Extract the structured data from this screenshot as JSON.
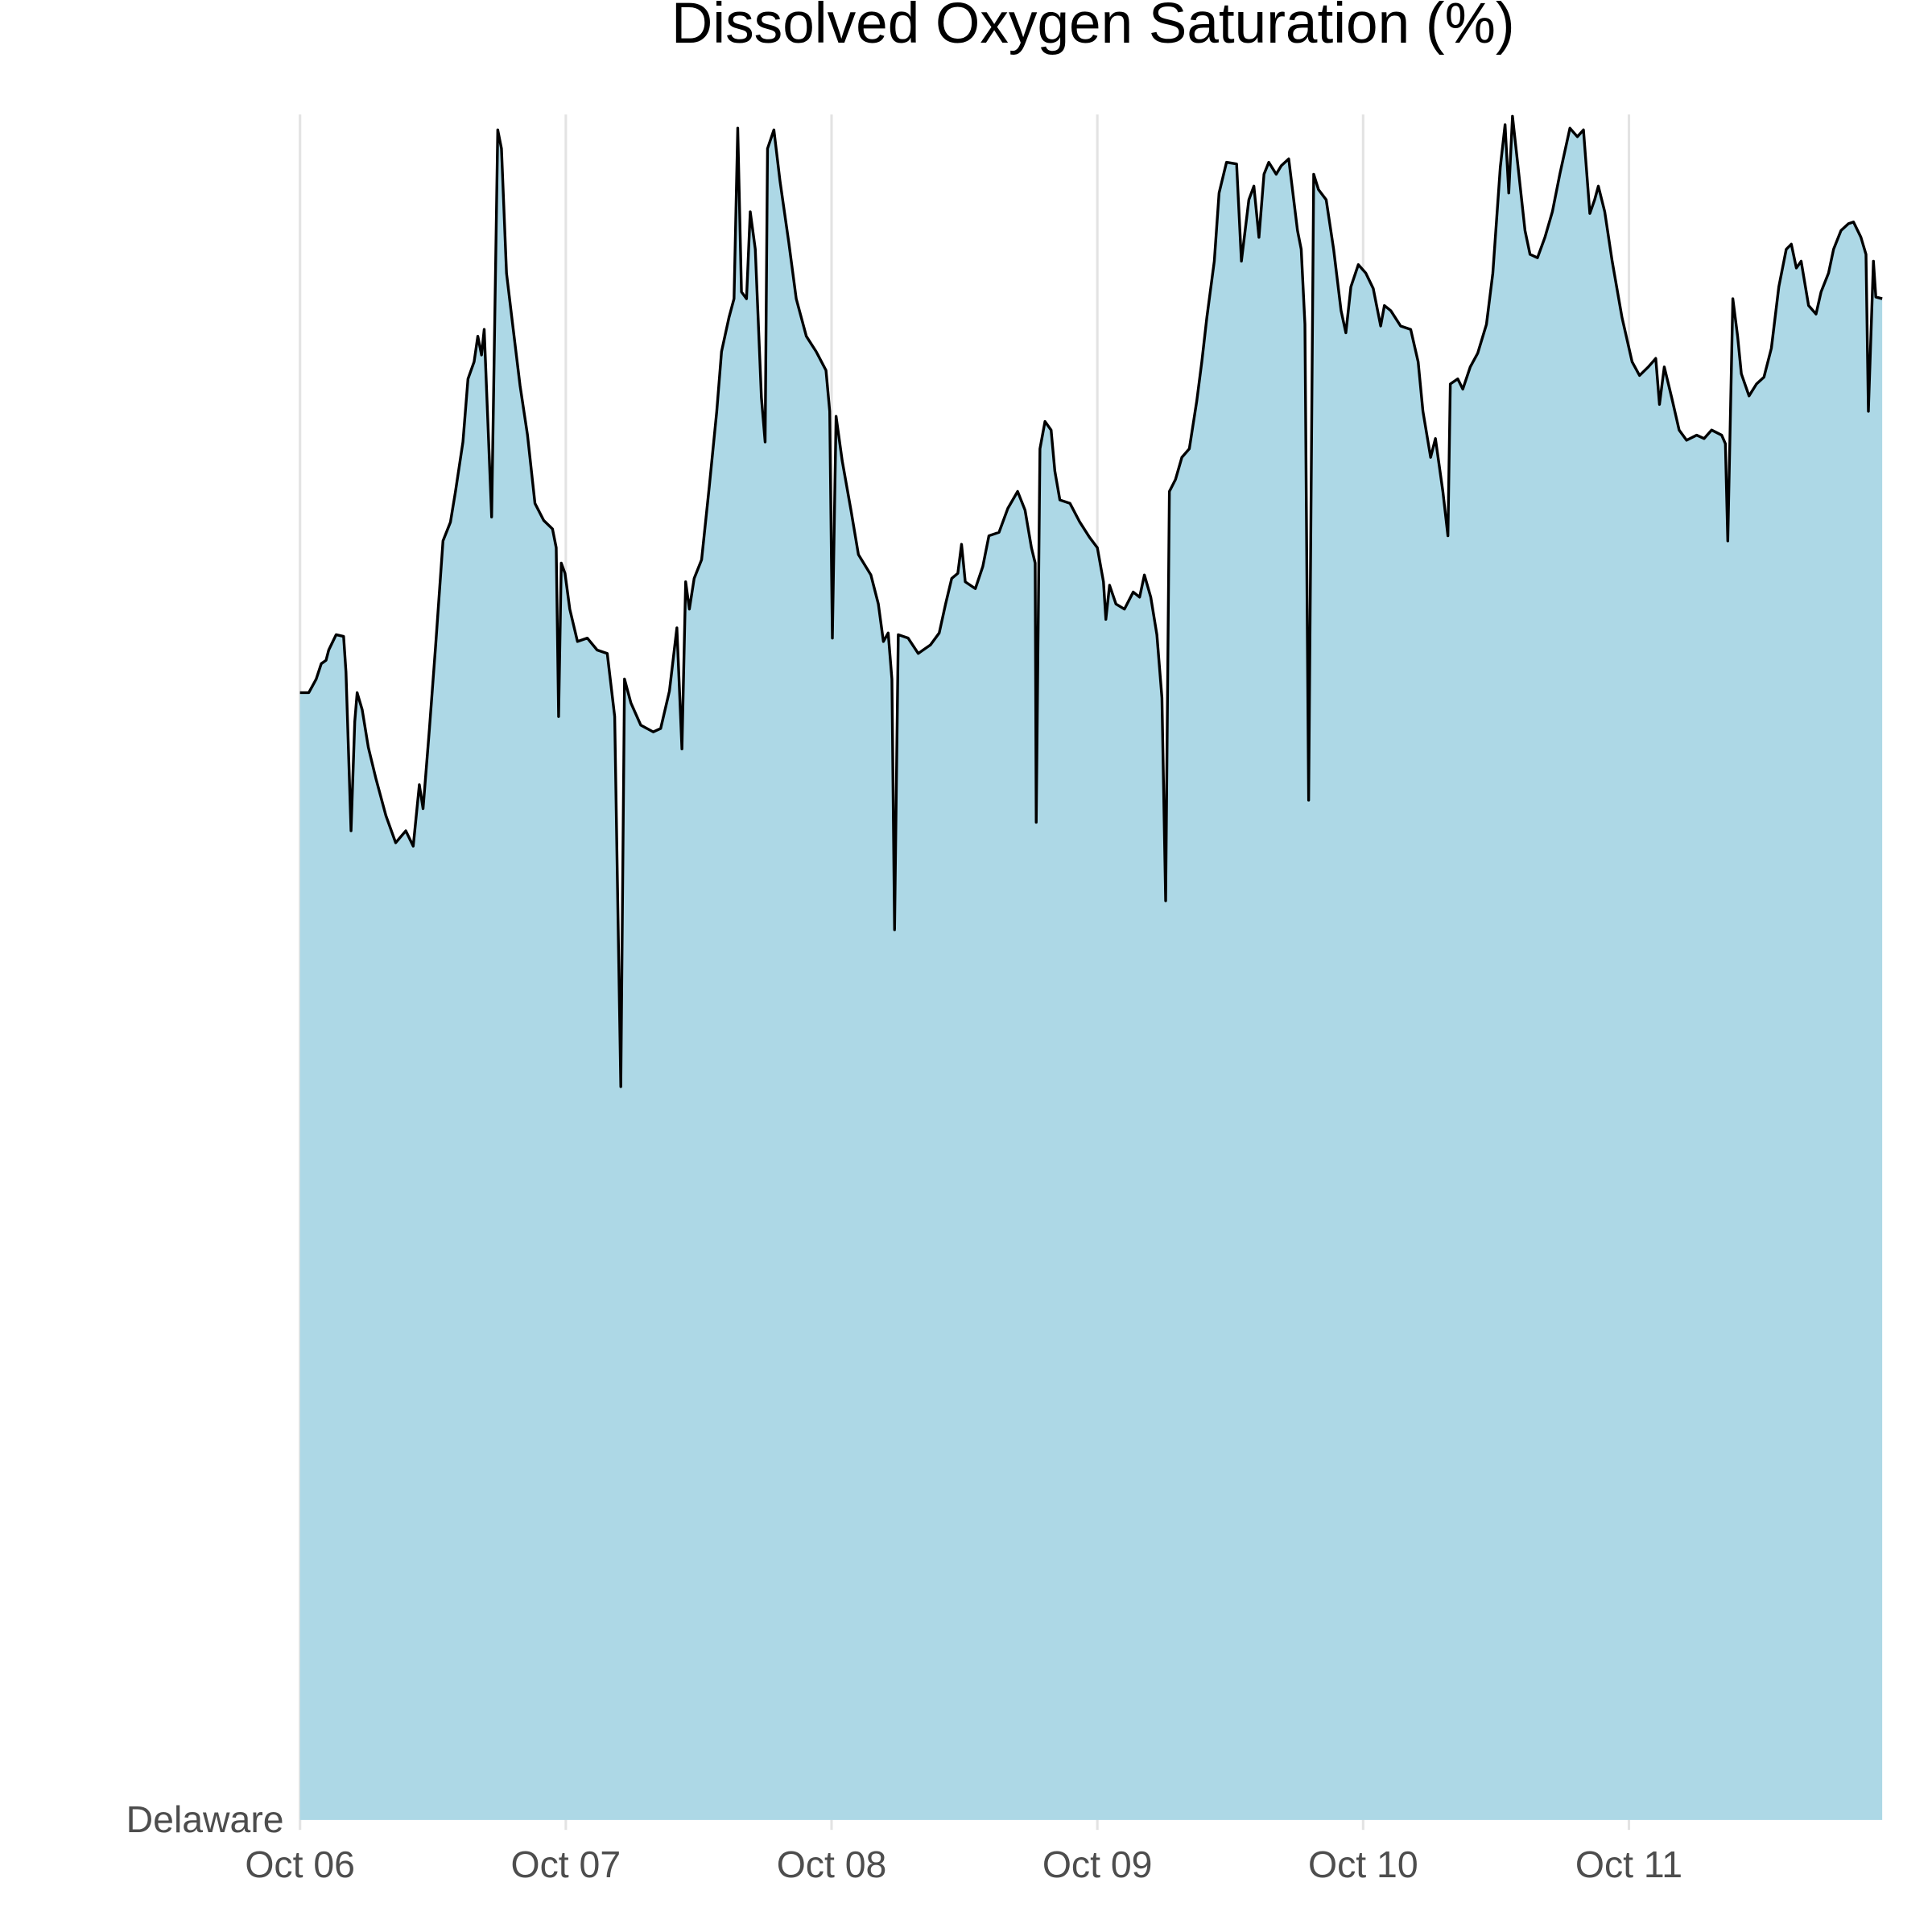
{
  "chart_data": {
    "type": "area",
    "title": "Dissolved Oxygen Saturation (%)",
    "xlim": [
      0,
      5.953
    ],
    "xticks": [
      {
        "value": 0,
        "label": "Oct 06"
      },
      {
        "value": 1,
        "label": "Oct 07"
      },
      {
        "value": 2,
        "label": "Oct 08"
      },
      {
        "value": 3,
        "label": "Oct 09"
      },
      {
        "value": 4,
        "label": "Oct 10"
      },
      {
        "value": 5,
        "label": "Oct 11"
      }
    ],
    "ylim": [
      0,
      100
    ],
    "grid": true,
    "line_color": "#000000",
    "x": [
      0,
      0.033,
      0.061,
      0.08,
      0.098,
      0.108,
      0.136,
      0.164,
      0.173,
      0.192,
      0.206,
      0.215,
      0.234,
      0.257,
      0.285,
      0.323,
      0.36,
      0.398,
      0.426,
      0.449,
      0.463,
      0.487,
      0.51,
      0.538,
      0.566,
      0.585,
      0.613,
      0.632,
      0.655,
      0.669,
      0.683,
      0.693,
      0.721,
      0.744,
      0.758,
      0.777,
      0.8,
      0.828,
      0.856,
      0.884,
      0.917,
      0.95,
      0.964,
      0.973,
      0.983,
      0.997,
      1.015,
      1.044,
      1.081,
      1.118,
      1.156,
      1.184,
      1.207,
      1.221,
      1.245,
      1.282,
      1.329,
      1.357,
      1.39,
      1.418,
      1.437,
      1.451,
      1.465,
      1.483,
      1.511,
      1.54,
      1.568,
      1.586,
      1.614,
      1.633,
      1.647,
      1.661,
      1.68,
      1.694,
      1.713,
      1.736,
      1.75,
      1.759,
      1.783,
      1.806,
      1.839,
      1.867,
      1.905,
      1.942,
      1.979,
      1.993,
      2.003,
      2.017,
      2.04,
      2.073,
      2.101,
      2.148,
      2.176,
      2.195,
      2.213,
      2.227,
      2.237,
      2.251,
      2.288,
      2.326,
      2.372,
      2.405,
      2.429,
      2.452,
      2.475,
      2.489,
      2.503,
      2.541,
      2.569,
      2.592,
      2.63,
      2.663,
      2.7,
      2.728,
      2.752,
      2.766,
      2.77,
      2.784,
      2.803,
      2.826,
      2.84,
      2.859,
      2.897,
      2.934,
      2.971,
      3.0,
      3.023,
      3.032,
      3.046,
      3.07,
      3.102,
      3.135,
      3.159,
      3.177,
      3.201,
      3.224,
      3.243,
      3.257,
      3.271,
      3.294,
      3.318,
      3.346,
      3.374,
      3.393,
      3.412,
      3.44,
      3.458,
      3.486,
      3.524,
      3.542,
      3.57,
      3.589,
      3.608,
      3.627,
      3.645,
      3.673,
      3.692,
      3.72,
      3.753,
      3.767,
      3.781,
      3.795,
      3.814,
      3.832,
      3.861,
      3.889,
      3.917,
      3.935,
      3.954,
      3.982,
      4.01,
      4.038,
      4.066,
      4.08,
      4.104,
      4.141,
      4.179,
      4.207,
      4.225,
      4.254,
      4.272,
      4.3,
      4.319,
      4.328,
      4.356,
      4.375,
      4.403,
      4.431,
      4.464,
      4.488,
      4.516,
      4.534,
      4.548,
      4.562,
      4.581,
      4.609,
      4.628,
      4.656,
      4.684,
      4.712,
      4.74,
      4.778,
      4.806,
      4.829,
      4.853,
      4.871,
      4.885,
      4.909,
      4.937,
      4.974,
      5.012,
      5.04,
      5.073,
      5.101,
      5.115,
      5.133,
      5.161,
      5.189,
      5.217,
      5.255,
      5.283,
      5.311,
      5.349,
      5.363,
      5.372,
      5.391,
      5.409,
      5.423,
      5.452,
      5.48,
      5.508,
      5.536,
      5.564,
      5.592,
      5.611,
      5.63,
      5.648,
      5.676,
      5.704,
      5.723,
      5.751,
      5.77,
      5.798,
      5.826,
      5.845,
      5.873,
      5.892,
      5.901,
      5.92,
      5.929,
      5.953
    ],
    "series": [
      {
        "name": "Delaware",
        "color": "#add8e6",
        "values": [
          66.1,
          66.1,
          66.9,
          67.8,
          68.0,
          68.6,
          69.5,
          69.4,
          67.3,
          58.0,
          64.4,
          66.1,
          65.1,
          62.9,
          61.1,
          58.9,
          57.3,
          58.0,
          57.1,
          60.7,
          59.3,
          64.0,
          68.8,
          75.0,
          76.1,
          77.9,
          80.8,
          84.5,
          85.5,
          87.0,
          85.9,
          87.4,
          76.4,
          99.1,
          98.0,
          90.7,
          87.7,
          84.1,
          81.2,
          77.2,
          76.2,
          75.7,
          74.6,
          64.7,
          73.7,
          73.1,
          71.0,
          69.1,
          69.3,
          68.6,
          68.4,
          64.7,
          43.0,
          66.9,
          65.5,
          64.2,
          63.8,
          64.0,
          66.2,
          69.9,
          62.8,
          72.6,
          71.0,
          72.8,
          73.9,
          78.2,
          82.6,
          86.1,
          88.1,
          89.2,
          99.2,
          89.6,
          89.2,
          94.3,
          92.1,
          83.4,
          80.8,
          98.0,
          99.1,
          96.1,
          92.5,
          89.2,
          87.0,
          86.1,
          85.0,
          82.6,
          69.3,
          82.3,
          79.7,
          76.8,
          74.2,
          73.0,
          71.3,
          69.1,
          69.6,
          66.9,
          52.2,
          69.5,
          69.3,
          68.4,
          68.9,
          69.6,
          71.3,
          72.8,
          73.1,
          74.8,
          72.6,
          72.2,
          73.5,
          75.3,
          75.5,
          76.9,
          77.9,
          76.8,
          74.6,
          73.7,
          58.5,
          80.4,
          82.0,
          81.5,
          79.1,
          77.4,
          77.2,
          76.1,
          75.2,
          74.6,
          72.6,
          70.4,
          72.4,
          71.3,
          71.0,
          72.0,
          71.7,
          73.0,
          71.7,
          69.5,
          65.8,
          53.9,
          77.9,
          78.6,
          79.9,
          80.4,
          83.2,
          85.5,
          88.1,
          91.4,
          95.4,
          97.2,
          97.1,
          91.4,
          95.0,
          95.8,
          92.8,
          96.5,
          97.2,
          96.5,
          97.0,
          97.4,
          93.2,
          92.1,
          87.7,
          59.8,
          96.5,
          95.6,
          95.0,
          92.1,
          88.5,
          87.2,
          89.9,
          91.2,
          90.7,
          89.8,
          87.6,
          88.8,
          88.5,
          87.6,
          87.4,
          85.5,
          82.6,
          79.9,
          81.0,
          77.9,
          75.3,
          84.2,
          84.5,
          83.9,
          85.2,
          86.0,
          87.7,
          90.7,
          96.9,
          99.4,
          95.4,
          99.9,
          97.2,
          93.2,
          91.8,
          91.6,
          92.8,
          94.3,
          96.5,
          99.2,
          98.7,
          99.1,
          94.2,
          95.0,
          95.8,
          94.3,
          91.4,
          88.1,
          85.5,
          84.7,
          85.2,
          85.7,
          83.0,
          85.2,
          83.4,
          81.5,
          80.9,
          81.2,
          81.0,
          81.5,
          81.2,
          80.7,
          75.0,
          89.2,
          87.0,
          84.8,
          83.5,
          84.2,
          84.6,
          86.3,
          89.9,
          92.1,
          92.4,
          91.0,
          91.4,
          88.8,
          88.3,
          89.6,
          90.7,
          92.1,
          93.2,
          93.6,
          93.7,
          92.8,
          91.8,
          82.6,
          91.4,
          89.3,
          89.2
        ]
      }
    ]
  }
}
